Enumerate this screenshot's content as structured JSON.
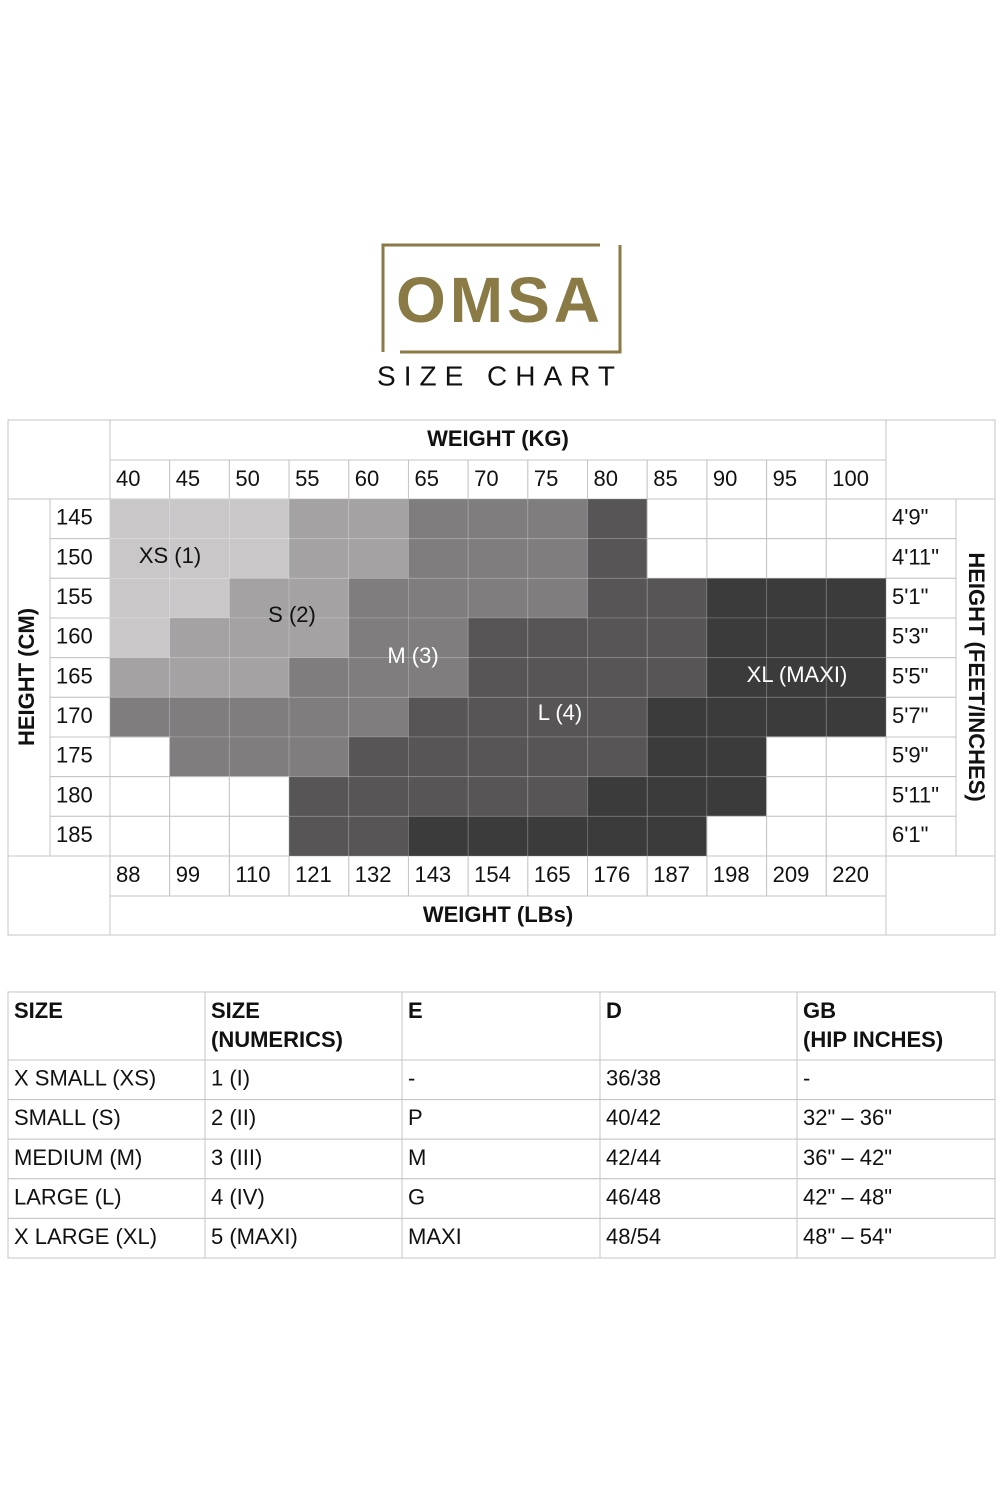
{
  "logo": "OMSA",
  "title": "SIZE CHART",
  "chart": {
    "weight_kg_label": "WEIGHT (KG)",
    "weight_kg": [
      40,
      45,
      50,
      55,
      60,
      65,
      70,
      75,
      80,
      85,
      90,
      95,
      100
    ],
    "height_cm_label": "HEIGHT (CM)",
    "height_cm": [
      145,
      150,
      155,
      160,
      165,
      170,
      175,
      180,
      185
    ],
    "height_ft_label": "HEIGHT (FEET/INCHES)",
    "height_ft": [
      "4'9\"",
      "4'11\"",
      "5'1\"",
      "5'3\"",
      "5'5\"",
      "5'7\"",
      "5'9\"",
      "5'11\"",
      "6'1\""
    ],
    "weight_lbs_label": "WEIGHT (LBs)",
    "weight_lbs": [
      88,
      99,
      110,
      121,
      132,
      143,
      154,
      165,
      176,
      187,
      198,
      209,
      220
    ],
    "zones": [
      "XS (1)",
      "S (2)",
      "M (3)",
      "L (4)",
      "XL (MAXI)"
    ],
    "cells": [
      [
        "#c9c7c8",
        "#c9c7c8",
        "#c9c7c8",
        "#a4a2a3",
        "#a4a2a3",
        "#7f7d7e",
        "#7f7d7e",
        "#7f7d7e",
        "#575556",
        null,
        null,
        null,
        null
      ],
      [
        "#c9c7c8",
        "#c9c7c8",
        "#c9c7c8",
        "#a4a2a3",
        "#a4a2a3",
        "#7f7d7e",
        "#7f7d7e",
        "#7f7d7e",
        "#575556",
        null,
        null,
        null,
        null
      ],
      [
        "#c9c7c8",
        "#c9c7c8",
        "#a4a2a3",
        "#a4a2a3",
        "#7f7d7e",
        "#7f7d7e",
        "#7f7d7e",
        "#7f7d7e",
        "#575556",
        "#575556",
        "#3b3b3b",
        "#3b3b3b",
        "#3b3b3b"
      ],
      [
        "#c9c7c8",
        "#a4a2a3",
        "#a4a2a3",
        "#a4a2a3",
        "#7f7d7e",
        "#7f7d7e",
        "#575556",
        "#575556",
        "#575556",
        "#575556",
        "#3b3b3b",
        "#3b3b3b",
        "#3b3b3b"
      ],
      [
        "#a4a2a3",
        "#a4a2a3",
        "#a4a2a3",
        "#7f7d7e",
        "#7f7d7e",
        "#7f7d7e",
        "#575556",
        "#575556",
        "#575556",
        "#575556",
        "#3b3b3b",
        "#3b3b3b",
        "#3b3b3b"
      ],
      [
        "#7f7d7e",
        "#7f7d7e",
        "#7f7d7e",
        "#7f7d7e",
        "#7f7d7e",
        "#575556",
        "#575556",
        "#575556",
        "#575556",
        "#3b3b3b",
        "#3b3b3b",
        "#3b3b3b",
        "#3b3b3b"
      ],
      [
        null,
        "#7f7d7e",
        "#7f7d7e",
        "#7f7d7e",
        "#575556",
        "#575556",
        "#575556",
        "#575556",
        "#575556",
        "#3b3b3b",
        "#3b3b3b",
        null,
        null
      ],
      [
        null,
        null,
        null,
        "#575556",
        "#575556",
        "#575556",
        "#575556",
        "#575556",
        "#3b3b3b",
        "#3b3b3b",
        "#3b3b3b",
        null,
        null
      ],
      [
        null,
        null,
        null,
        "#575556",
        "#575556",
        "#3b3b3b",
        "#3b3b3b",
        "#3b3b3b",
        "#3b3b3b",
        "#3b3b3b",
        null,
        null,
        null
      ]
    ]
  },
  "table": {
    "header": [
      [
        "SIZE"
      ],
      [
        "SIZE",
        "(NUMERICS)"
      ],
      [
        "E"
      ],
      [
        "D"
      ],
      [
        "GB",
        "(HIP INCHES)"
      ]
    ],
    "rows": [
      [
        "X SMALL (XS)",
        "1 (I)",
        "-",
        "36/38",
        "-"
      ],
      [
        "SMALL (S)",
        "2 (II)",
        "P",
        "40/42",
        "32\" – 36\""
      ],
      [
        "MEDIUM (M)",
        "3 (III)",
        "M",
        "42/44",
        "36\" – 42\""
      ],
      [
        "LARGE (L)",
        "4 (IV)",
        "G",
        "46/48",
        "42\" – 48\""
      ],
      [
        "X LARGE (XL)",
        "5 (MAXI)",
        "MAXI",
        "48/54",
        "48\" – 54\""
      ]
    ]
  }
}
